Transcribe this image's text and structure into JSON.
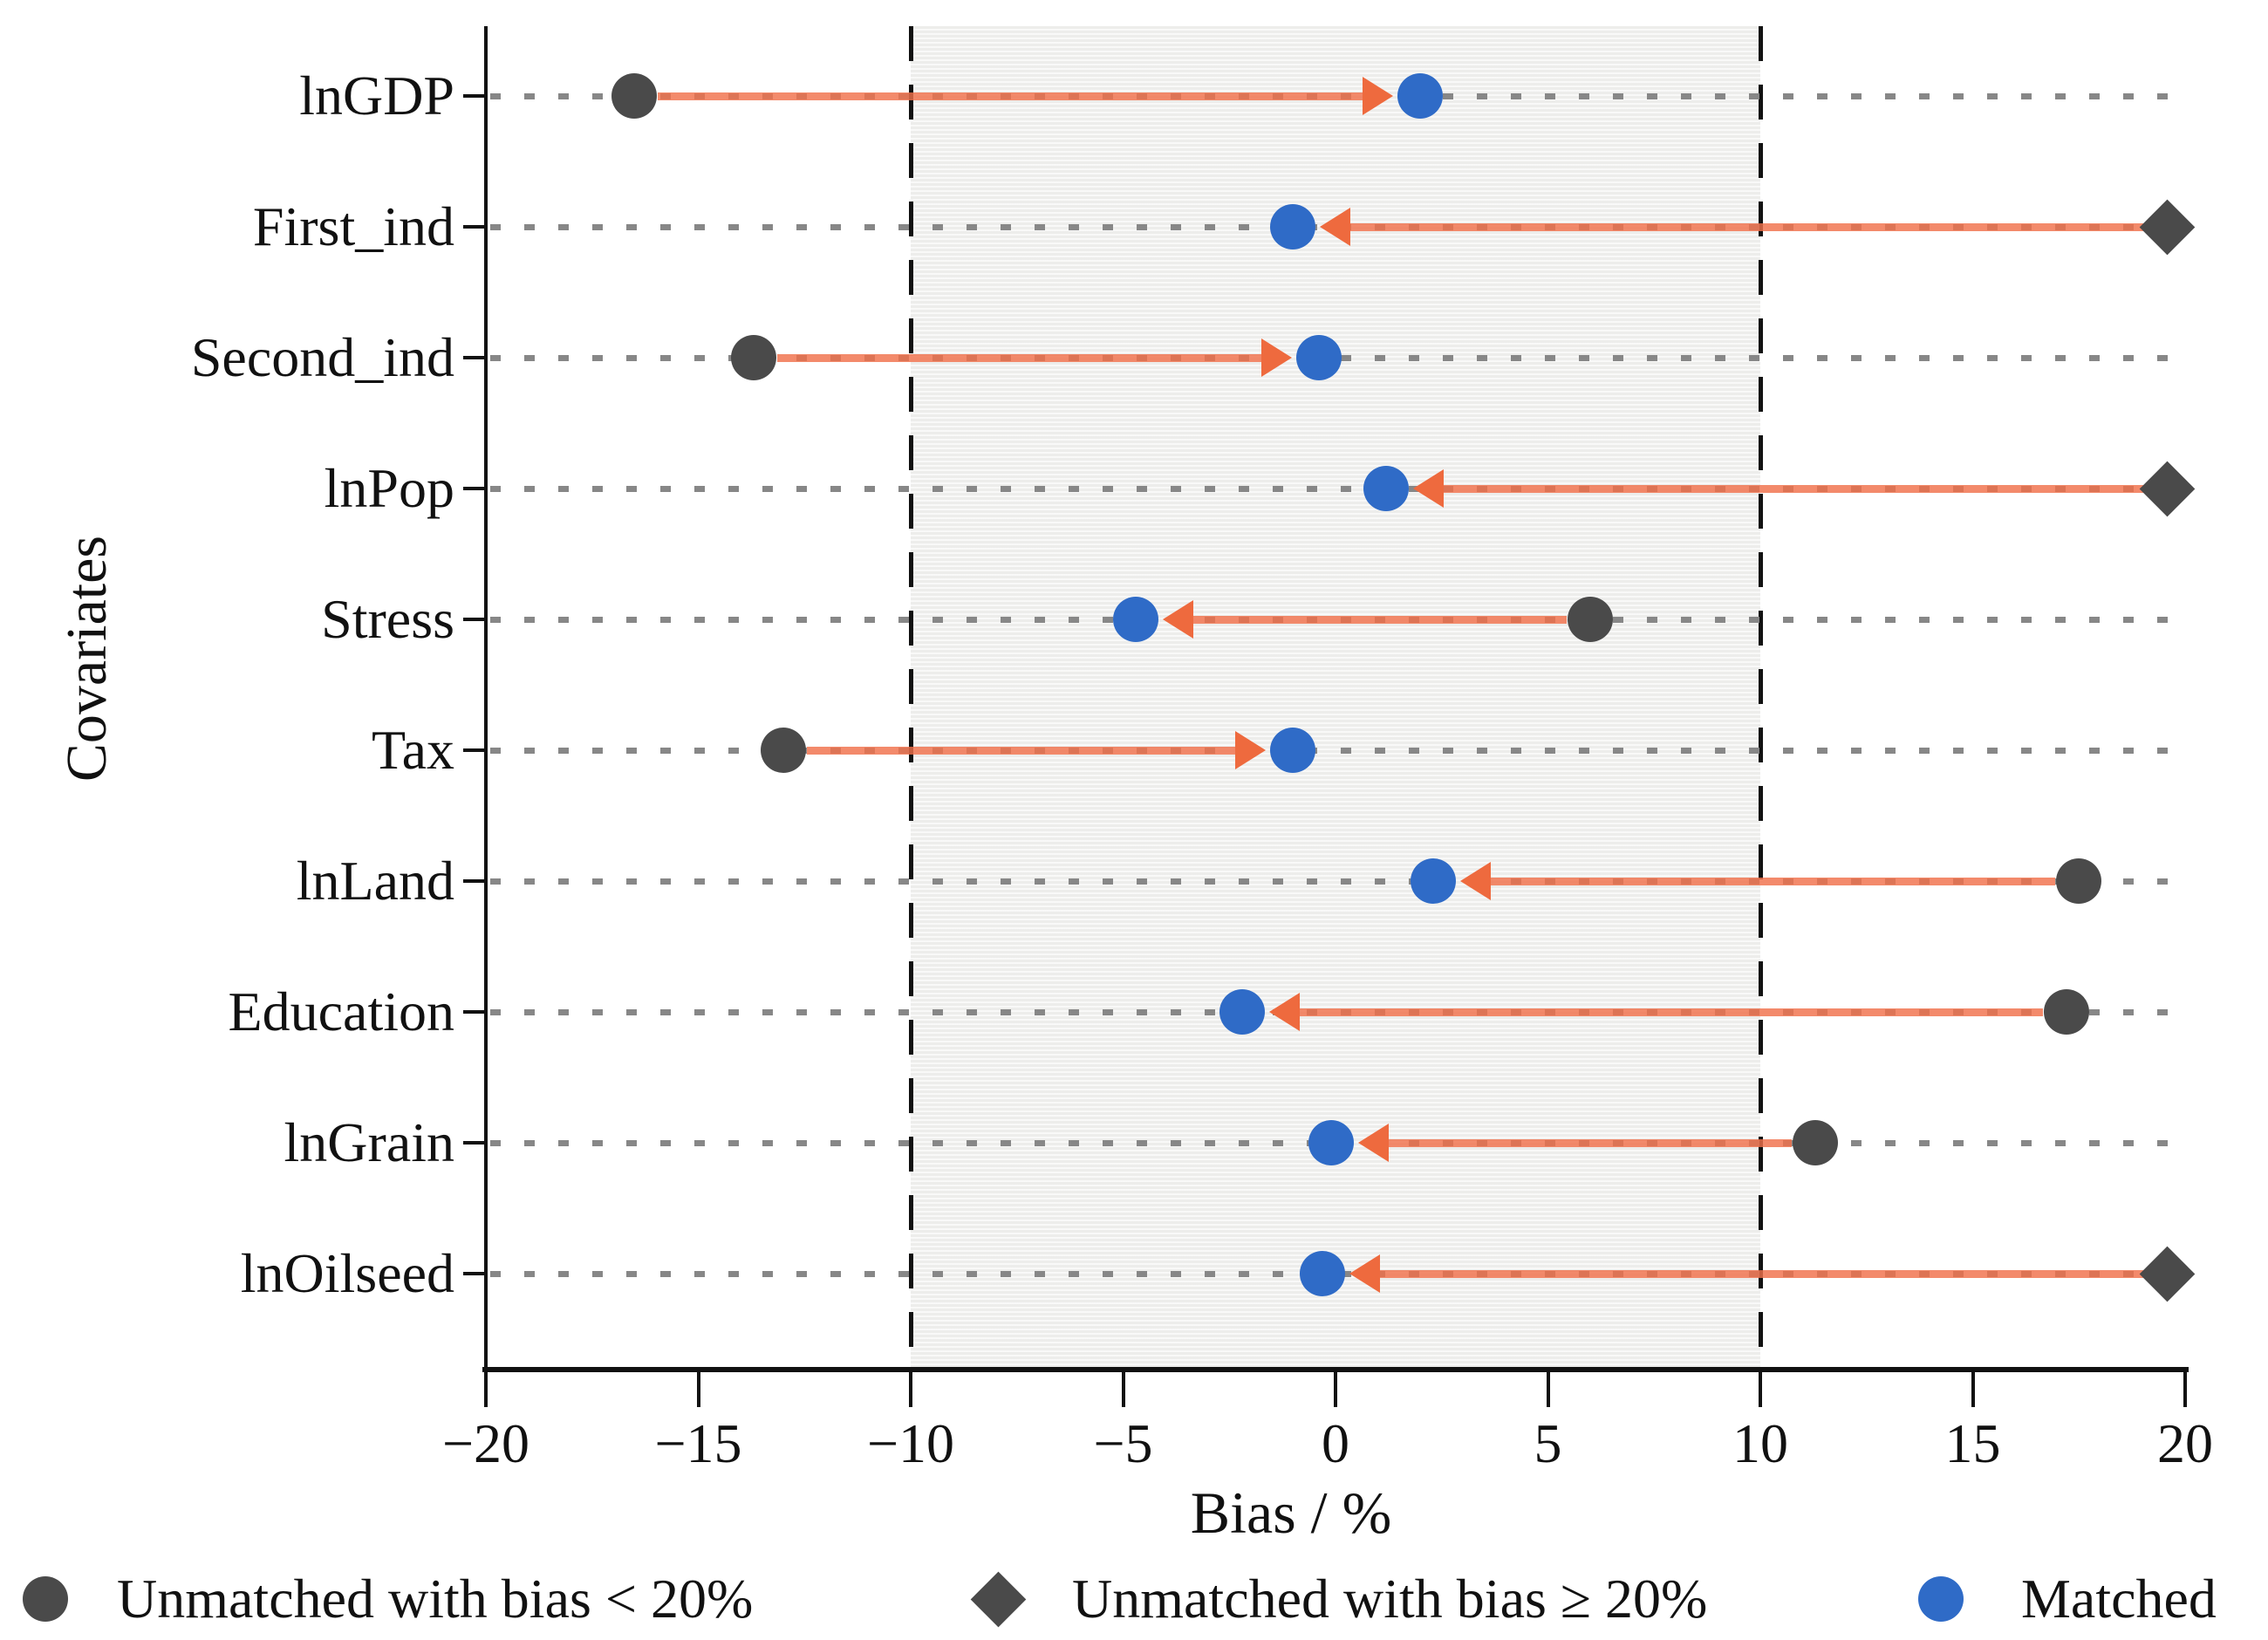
{
  "figure": {
    "background": "#ffffff"
  },
  "chart_data": {
    "type": "scatter",
    "subtype": "covariate-balance-dot-plot",
    "title": "",
    "xlabel": "Bias / %",
    "ylabel": "Covariates",
    "xlim": [
      -20,
      20
    ],
    "x_ticks": [
      -20,
      -15,
      -10,
      -5,
      0,
      5,
      10,
      15,
      20
    ],
    "x_tick_labels": [
      "−20",
      "−15",
      "−10",
      "−5",
      "0",
      "5",
      "10",
      "15",
      "20"
    ],
    "grid": "dotted-horizontal-per-category",
    "threshold_band": {
      "from": -10,
      "to": 10,
      "edge_style": "dashed-black",
      "fill": "#f1f1ef"
    },
    "categories": [
      "lnGDP",
      "First_ind",
      "Second_ind",
      "lnPop",
      "Stress",
      "Tax",
      "lnLand",
      "Education",
      "lnGrain",
      "lnOilseed"
    ],
    "series": [
      {
        "name": "Unmatched",
        "values": [
          -16.5,
          20,
          -13.7,
          20,
          6,
          -13,
          17.5,
          17.2,
          11.3,
          20
        ],
        "markers": [
          "circle",
          "diamond",
          "circle",
          "diamond",
          "circle",
          "circle",
          "circle",
          "circle",
          "circle",
          "diamond"
        ],
        "color": "#4a4a4a"
      },
      {
        "name": "Matched",
        "values": [
          2,
          -1,
          -0.4,
          1.2,
          -4.7,
          -1,
          2.3,
          -2.2,
          -0.1,
          -0.3
        ],
        "markers": [
          "circle",
          "circle",
          "circle",
          "circle",
          "circle",
          "circle",
          "circle",
          "circle",
          "circle",
          "circle"
        ],
        "color": "#2f6bc7"
      }
    ],
    "arrows": {
      "direction": "unmatched-to-matched",
      "color": "#ee6a3e"
    },
    "legend_position": "bottom",
    "legend": [
      {
        "label": "Unmatched with bias < 20%",
        "marker": "circle",
        "color": "#4a4a4a"
      },
      {
        "label": "Unmatched with bias ≥ 20%",
        "marker": "diamond",
        "color": "#4a4a4a"
      },
      {
        "label": "Matched",
        "marker": "circle",
        "color": "#2f6bc7"
      }
    ],
    "colors": {
      "unmatched": "#4a4a4a",
      "matched": "#2f6bc7",
      "arrow": "#ee6a3e",
      "arrow_line": "#f0704a",
      "dotted_grid": "#878787",
      "axis": "#111111",
      "band_fill": "#f1f1ef"
    }
  }
}
